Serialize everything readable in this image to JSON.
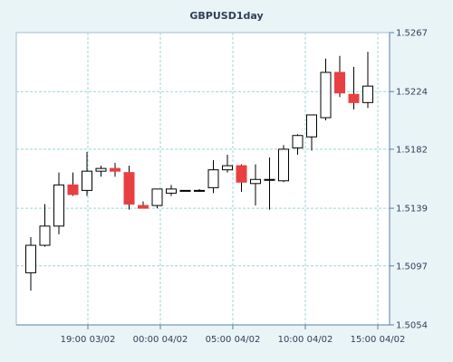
{
  "colors": {
    "background": "#e9f4f6",
    "plot_background": "#ffffff",
    "plot_border": "#9fbfcc",
    "grid": "#9fd4d8",
    "axis": "#5a7ea6",
    "text": "#30405a",
    "up_fill": "#ffffff",
    "down_fill": "#e84040",
    "candle_outline": "#000000"
  },
  "chart_data": {
    "type": "candlestick",
    "title": "GBPUSD1day",
    "ylim": [
      1.5054,
      1.5267
    ],
    "y_ticks": [
      "1.5054",
      "1.5097",
      "1.5139",
      "1.5182",
      "1.5224",
      "1.5267"
    ],
    "x_ticks": [
      "19:00 03/02",
      "00:00 04/02",
      "05:00 04/02",
      "10:00 04/02",
      "15:00 04/02"
    ],
    "grid": true,
    "candles": [
      {
        "open": 1.5092,
        "high": 1.5118,
        "low": 1.5079,
        "close": 1.5112
      },
      {
        "open": 1.5112,
        "high": 1.5142,
        "low": 1.5111,
        "close": 1.5126
      },
      {
        "open": 1.5126,
        "high": 1.5165,
        "low": 1.512,
        "close": 1.5156
      },
      {
        "open": 1.5156,
        "high": 1.5165,
        "low": 1.5148,
        "close": 1.5149
      },
      {
        "open": 1.5152,
        "high": 1.518,
        "low": 1.5148,
        "close": 1.5166
      },
      {
        "open": 1.5166,
        "high": 1.517,
        "low": 1.5162,
        "close": 1.5168
      },
      {
        "open": 1.5168,
        "high": 1.5172,
        "low": 1.5162,
        "close": 1.5166
      },
      {
        "open": 1.5165,
        "high": 1.517,
        "low": 1.5138,
        "close": 1.5142
      },
      {
        "open": 1.5141,
        "high": 1.5144,
        "low": 1.5139,
        "close": 1.5139
      },
      {
        "open": 1.5141,
        "high": 1.5153,
        "low": 1.5139,
        "close": 1.5153
      },
      {
        "open": 1.515,
        "high": 1.5156,
        "low": 1.5148,
        "close": 1.5153
      },
      {
        "open": 1.5152,
        "high": 1.5152,
        "low": 1.5152,
        "close": 1.5152
      },
      {
        "open": 1.5152,
        "high": 1.5153,
        "low": 1.5151,
        "close": 1.5152
      },
      {
        "open": 1.5154,
        "high": 1.5174,
        "low": 1.515,
        "close": 1.5167
      },
      {
        "open": 1.5167,
        "high": 1.5178,
        "low": 1.5165,
        "close": 1.517
      },
      {
        "open": 1.517,
        "high": 1.5171,
        "low": 1.5151,
        "close": 1.5158
      },
      {
        "open": 1.5157,
        "high": 1.5171,
        "low": 1.5141,
        "close": 1.516
      },
      {
        "open": 1.516,
        "high": 1.5176,
        "low": 1.5138,
        "close": 1.516
      },
      {
        "open": 1.5159,
        "high": 1.5185,
        "low": 1.5158,
        "close": 1.5182
      },
      {
        "open": 1.5183,
        "high": 1.5193,
        "low": 1.5178,
        "close": 1.5192
      },
      {
        "open": 1.5191,
        "high": 1.5206,
        "low": 1.5181,
        "close": 1.5207
      },
      {
        "open": 1.5205,
        "high": 1.5248,
        "low": 1.5203,
        "close": 1.5238
      },
      {
        "open": 1.5238,
        "high": 1.525,
        "low": 1.522,
        "close": 1.5223
      },
      {
        "open": 1.5222,
        "high": 1.5242,
        "low": 1.5211,
        "close": 1.5216
      },
      {
        "open": 1.5216,
        "high": 1.5253,
        "low": 1.5212,
        "close": 1.5228
      }
    ]
  }
}
